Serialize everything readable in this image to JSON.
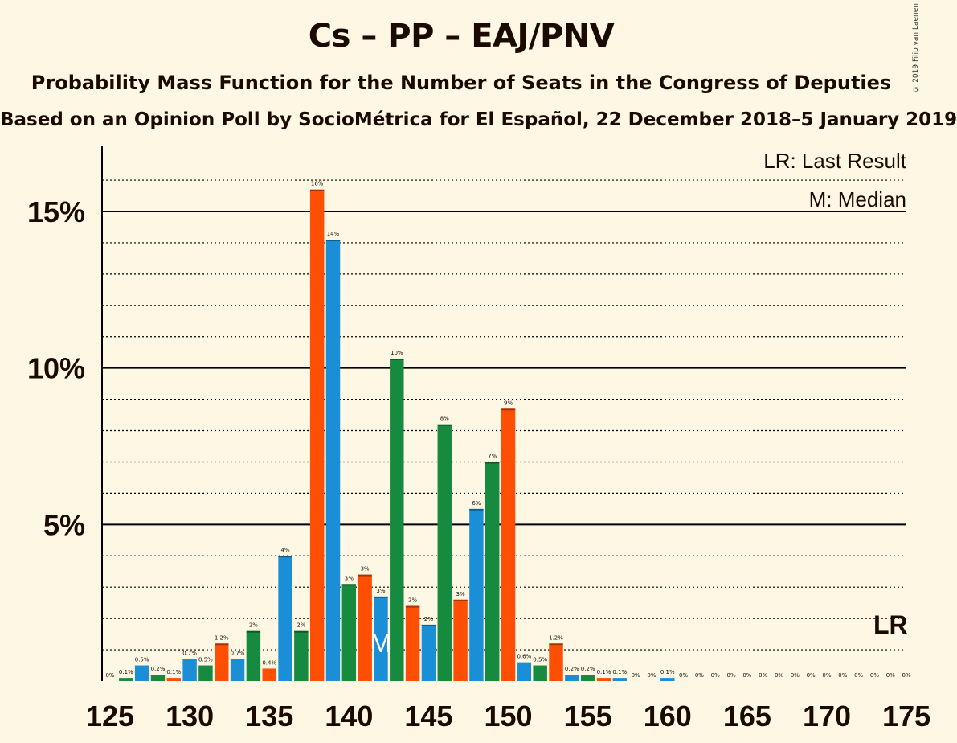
{
  "title": "Cs – PP – EAJ/PNV",
  "subtitle": "Probability Mass Function for the Number of Seats in the Congress of Deputies",
  "subtitle2": "Based on an Opinion Poll by SocioMétrica for El Español, 22 December 2018–5 January 2019",
  "copyright": "© 2019 Filip van Laenen",
  "legend": {
    "last_result": "LR: Last Result",
    "median": "M: Median"
  },
  "colors": {
    "background": "#fdf7e3",
    "blue": "#1a8fd8",
    "green": "#168a3e",
    "orange": "#ff4f05"
  },
  "chart_data": {
    "type": "bar",
    "x": [
      125,
      126,
      127,
      128,
      129,
      130,
      131,
      132,
      133,
      134,
      135,
      136,
      137,
      138,
      139,
      140,
      141,
      142,
      143,
      144,
      145,
      146,
      147,
      148,
      149,
      150,
      151,
      152,
      153,
      154,
      155,
      156,
      157,
      158,
      159,
      160,
      161,
      162,
      163,
      164,
      165,
      166,
      167,
      168,
      169,
      170,
      171,
      172,
      173,
      174,
      175
    ],
    "values": [
      0,
      0.1,
      0.5,
      0.2,
      0.1,
      0.7,
      0.5,
      1.2,
      0.7,
      1.6,
      0.4,
      4.0,
      1.6,
      15.7,
      14.1,
      3.1,
      3.4,
      2.7,
      10.3,
      2.4,
      1.8,
      8.2,
      2.6,
      5.5,
      7.0,
      8.7,
      0.6,
      0.5,
      1.2,
      0.2,
      0.2,
      0.1,
      0.1,
      0,
      0,
      0.1,
      0,
      0,
      0,
      0,
      0,
      0,
      0,
      0,
      0,
      0,
      0,
      0,
      0,
      0,
      0
    ],
    "labels": [
      "0%",
      "0.1%",
      "0.5%",
      "0.2%",
      "0.1%",
      "0.7%",
      "0.5%",
      "1.2%",
      "0.7%",
      "2%",
      "0.4%",
      "4%",
      "2%",
      "16%",
      "14%",
      "3%",
      "3%",
      "3%",
      "10%",
      "2%",
      "2%",
      "8%",
      "3%",
      "6%",
      "7%",
      "9%",
      "0.6%",
      "0.5%",
      "1.2%",
      "0.2%",
      "0.2%",
      "0.1%",
      "0.1%",
      "0%",
      "0%",
      "0.1%",
      "0%",
      "0%",
      "0%",
      "0%",
      "0%",
      "0%",
      "0%",
      "0%",
      "0%",
      "0%",
      "0%",
      "0%",
      "0%",
      "0%",
      "0%"
    ],
    "bar_colors": [
      "green",
      "green",
      "blue",
      "green",
      "orange",
      "blue",
      "green",
      "orange",
      "blue",
      "green",
      "orange",
      "blue",
      "green",
      "orange",
      "blue",
      "green",
      "orange",
      "blue",
      "green",
      "orange",
      "blue",
      "green",
      "orange",
      "blue",
      "green",
      "orange",
      "blue",
      "green",
      "orange",
      "blue",
      "green",
      "orange",
      "blue",
      "green",
      "orange",
      "blue",
      "green",
      "orange",
      "blue",
      "green",
      "orange",
      "blue",
      "green",
      "orange",
      "blue",
      "green",
      "orange",
      "blue",
      "green",
      "orange",
      "blue"
    ],
    "x_ticks": [
      125,
      130,
      135,
      140,
      145,
      150,
      155,
      160,
      165,
      170,
      175
    ],
    "y_ticks": [
      5,
      10,
      15
    ],
    "y_tick_labels": [
      "5%",
      "10%",
      "15%"
    ],
    "ylim": [
      0,
      17
    ],
    "median_seat": 142,
    "median_marker": "M",
    "last_result_seat": 174,
    "last_result_marker": "LR"
  }
}
